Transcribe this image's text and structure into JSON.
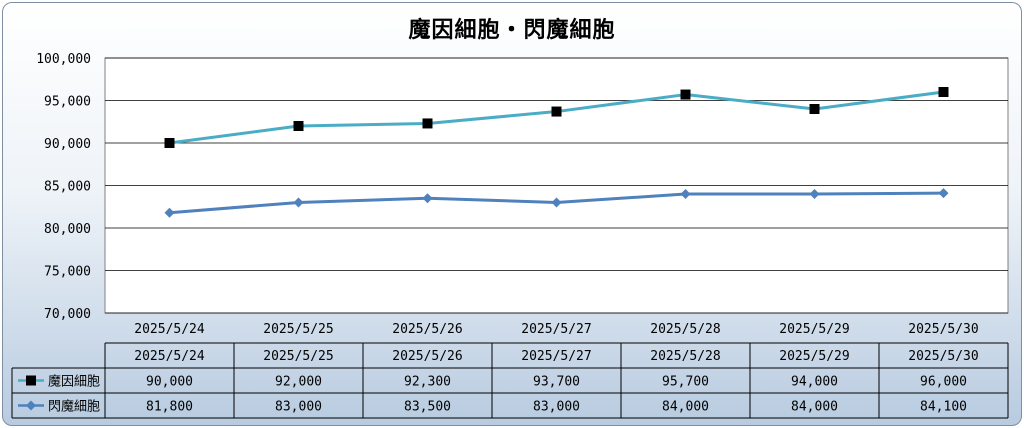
{
  "chart_data": {
    "type": "line",
    "title": "魔因細胞・閃魔細胞",
    "categories": [
      "2025/5/24",
      "2025/5/25",
      "2025/5/26",
      "2025/5/27",
      "2025/5/28",
      "2025/5/29",
      "2025/5/30"
    ],
    "ylim": [
      70000,
      100000
    ],
    "yticks": [
      "70,000",
      "75,000",
      "80,000",
      "85,000",
      "90,000",
      "95,000",
      "100,000"
    ],
    "ytick_values": [
      70000,
      75000,
      80000,
      85000,
      90000,
      95000,
      100000
    ],
    "grid": true,
    "series": [
      {
        "name": "魔因細胞",
        "values": [
          90000,
          92000,
          92300,
          93700,
          95700,
          94000,
          96000
        ],
        "labels": [
          "90,000",
          "92,000",
          "92,300",
          "93,700",
          "95,700",
          "94,000",
          "96,000"
        ],
        "color": "#4bacc6",
        "marker": "square",
        "marker_color": "#000000"
      },
      {
        "name": "閃魔細胞",
        "values": [
          81800,
          83000,
          83500,
          83000,
          84000,
          84000,
          84100
        ],
        "labels": [
          "81,800",
          "83,000",
          "83,500",
          "83,000",
          "84,000",
          "84,000",
          "84,100"
        ],
        "color": "#4f81bd",
        "marker": "diamond",
        "marker_color": "#4f81bd"
      }
    ],
    "data_table": true
  }
}
